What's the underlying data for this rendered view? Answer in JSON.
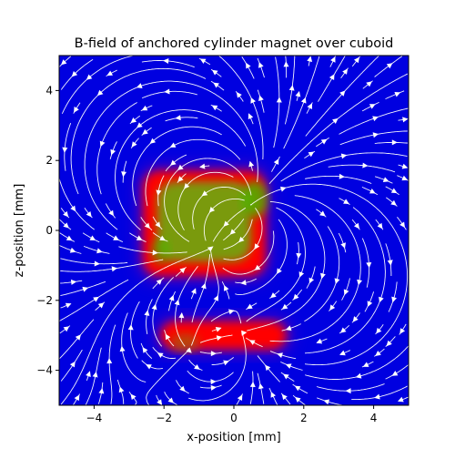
{
  "chart_data": {
    "type": "streamplot",
    "title": "B-field of anchored cylinder magnet over cuboid",
    "xlabel": "x-position [mm]",
    "ylabel": "z-position [mm]",
    "xlim": [
      -5,
      5
    ],
    "ylim": [
      -5,
      5
    ],
    "xticks": [
      -4,
      -2,
      0,
      2,
      4
    ],
    "yticks": [
      -4,
      -2,
      0,
      2,
      4
    ],
    "x_tick_labels": [
      "−4",
      "−2",
      "0",
      "2",
      "4"
    ],
    "y_tick_labels": [
      "−4",
      "−2",
      "0",
      "2",
      "4"
    ],
    "grid": false,
    "background_color": "#0000e0",
    "stream_color": "#ffffff",
    "magnitude_colors": {
      "low": "#0000e0",
      "mid": "#ff0000",
      "high": "#40c000"
    },
    "dipoles": [
      {
        "name": "cylinder magnet",
        "x": -0.1,
        "z": 0.1,
        "mx": 1,
        "mz": 1,
        "strength": 3.2,
        "shape": "rect",
        "x_range": [
          -2.6,
          0.9
        ],
        "z_range": [
          -1.3,
          1.7
        ]
      },
      {
        "name": "cuboid",
        "x": -0.4,
        "z": -3.1,
        "mx": -1,
        "mz": 0,
        "strength": 1.4,
        "shape": "rect",
        "x_range": [
          -2.1,
          1.5
        ],
        "z_range": [
          -3.4,
          -2.6
        ]
      }
    ]
  }
}
